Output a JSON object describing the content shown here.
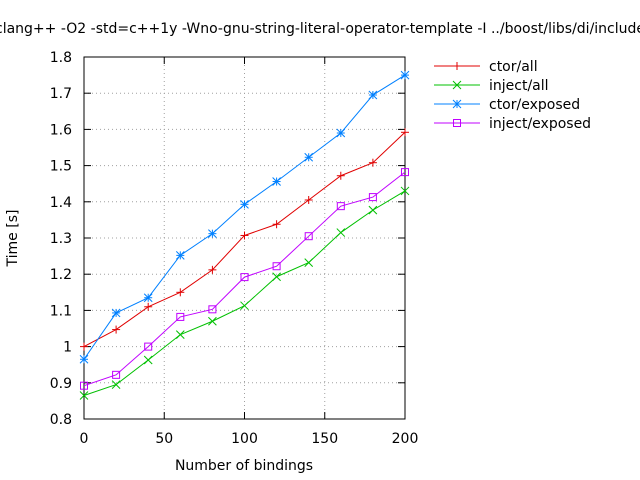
{
  "chart_data": {
    "type": "line",
    "title": "clang++ -O2 -std=c++1y -Wno-gnu-string-literal-operator-template -I ../boost/libs/di/include",
    "xlabel": "Number of bindings",
    "ylabel": "Time [s]",
    "xlim": [
      0,
      200
    ],
    "ylim": [
      0.8,
      1.8
    ],
    "xticks": [
      0,
      50,
      100,
      150,
      200
    ],
    "yticks": [
      0.8,
      0.9,
      1,
      1.1,
      1.2,
      1.3,
      1.4,
      1.5,
      1.6,
      1.7,
      1.8
    ],
    "grid": true,
    "legend_position": "outside-right-top",
    "x": [
      0,
      20,
      40,
      60,
      80,
      100,
      120,
      140,
      160,
      180,
      200
    ],
    "series": [
      {
        "name": "ctor/all",
        "color": "#e00000",
        "marker": "plus",
        "values": [
          1.0,
          1.047,
          1.11,
          1.15,
          1.212,
          1.307,
          1.338,
          1.405,
          1.472,
          1.508,
          1.592
        ]
      },
      {
        "name": "inject/all",
        "color": "#00c000",
        "marker": "cross",
        "values": [
          0.865,
          0.895,
          0.963,
          1.033,
          1.07,
          1.113,
          1.193,
          1.232,
          1.315,
          1.377,
          1.43
        ]
      },
      {
        "name": "ctor/exposed",
        "color": "#0080ff",
        "marker": "star",
        "values": [
          0.965,
          1.093,
          1.135,
          1.252,
          1.312,
          1.393,
          1.456,
          1.523,
          1.59,
          1.695,
          1.75
        ]
      },
      {
        "name": "inject/exposed",
        "color": "#c000ff",
        "marker": "box",
        "values": [
          0.892,
          0.922,
          1.0,
          1.082,
          1.103,
          1.192,
          1.222,
          1.305,
          1.388,
          1.413,
          1.482
        ]
      }
    ]
  }
}
